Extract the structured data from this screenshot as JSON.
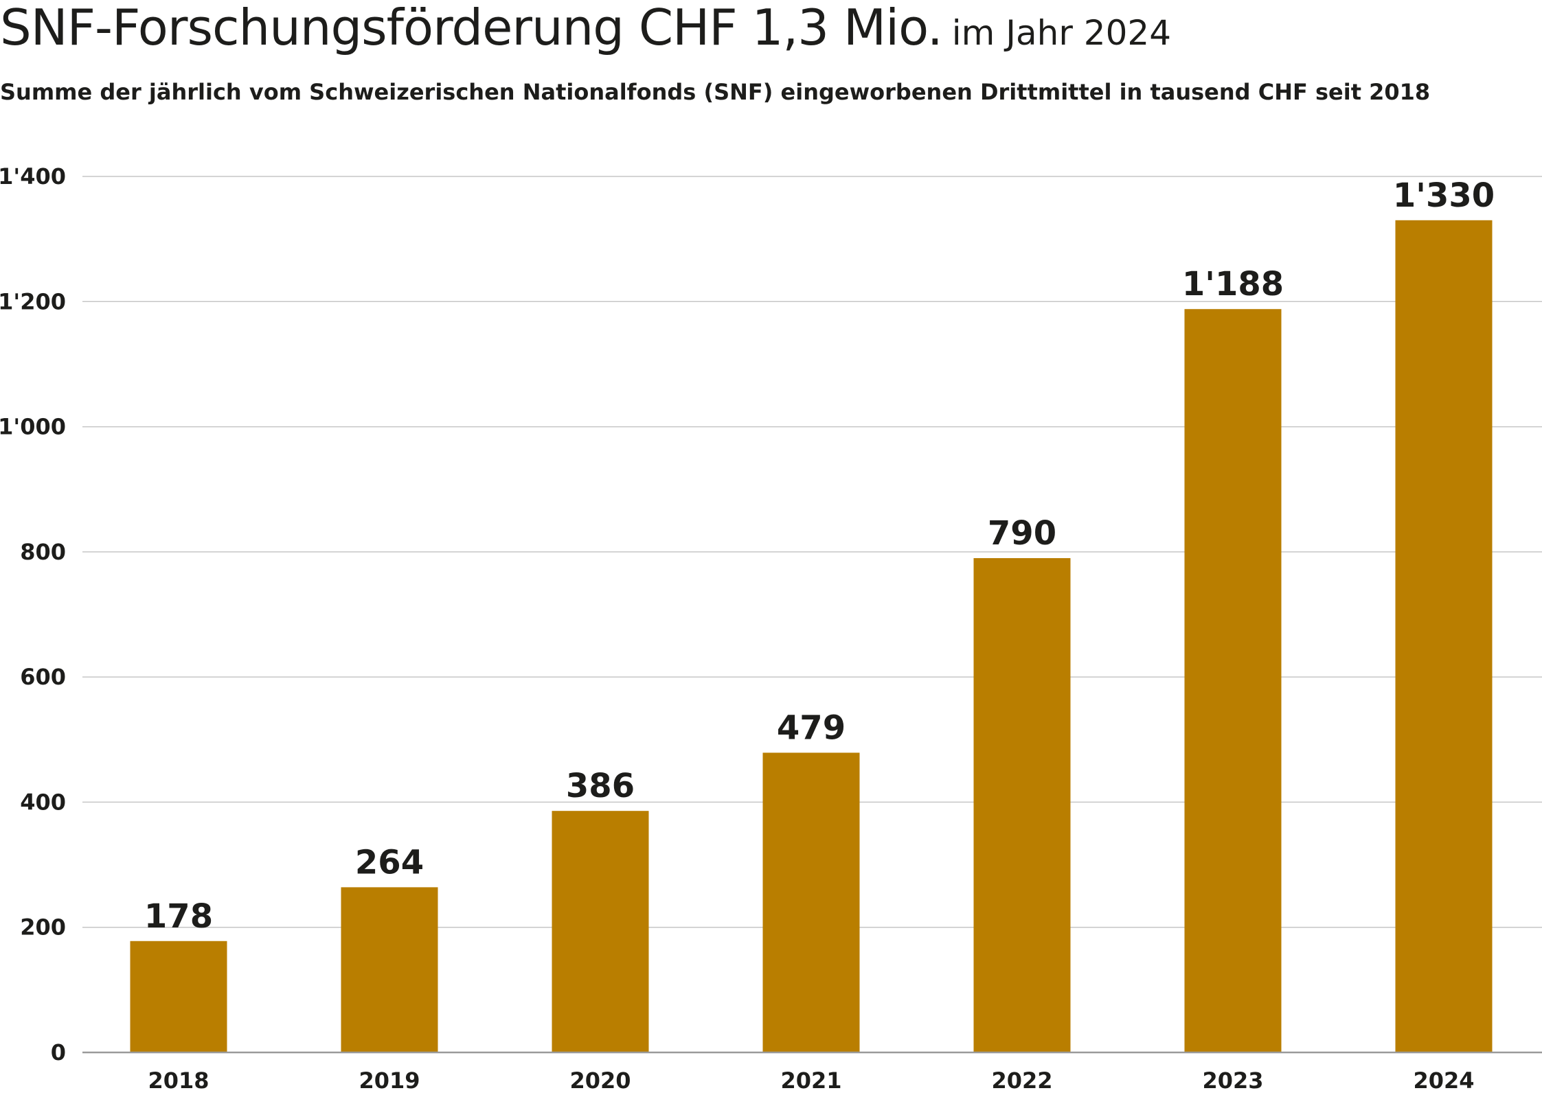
{
  "header": {
    "title": "SNF-Forschungsförderung CHF 1,3 Mio.",
    "title_suffix": "im Jahr 2024",
    "subtitle": "Summe der jährlich vom Schweizerischen Nationalfonds (SNF) eingeworbenen Drittmittel in tausend CHF seit 2018"
  },
  "chart_data": {
    "type": "bar",
    "title": "SNF-Forschungsförderung CHF 1,3 Mio. im Jahr 2024",
    "subtitle": "Summe der jährlich vom Schweizerischen Nationalfonds (SNF) eingeworbenen Drittmittel in tausend CHF seit 2018",
    "categories": [
      "2018",
      "2019",
      "2020",
      "2021",
      "2022",
      "2023",
      "2024"
    ],
    "values": [
      178,
      264,
      386,
      479,
      790,
      1188,
      1330
    ],
    "value_labels": [
      "178",
      "264",
      "386",
      "479",
      "790",
      "1'188",
      "1'330"
    ],
    "xlabel": "",
    "ylabel": "",
    "ylim": [
      0,
      1400
    ],
    "y_ticks": [
      0,
      200,
      400,
      600,
      800,
      1000,
      1200,
      1400
    ],
    "y_tick_labels": [
      "0",
      "200",
      "400",
      "600",
      "800",
      "1'000",
      "1'200",
      "1'400"
    ],
    "grid": true,
    "legend": "none",
    "bar_color": "#b97e00"
  }
}
